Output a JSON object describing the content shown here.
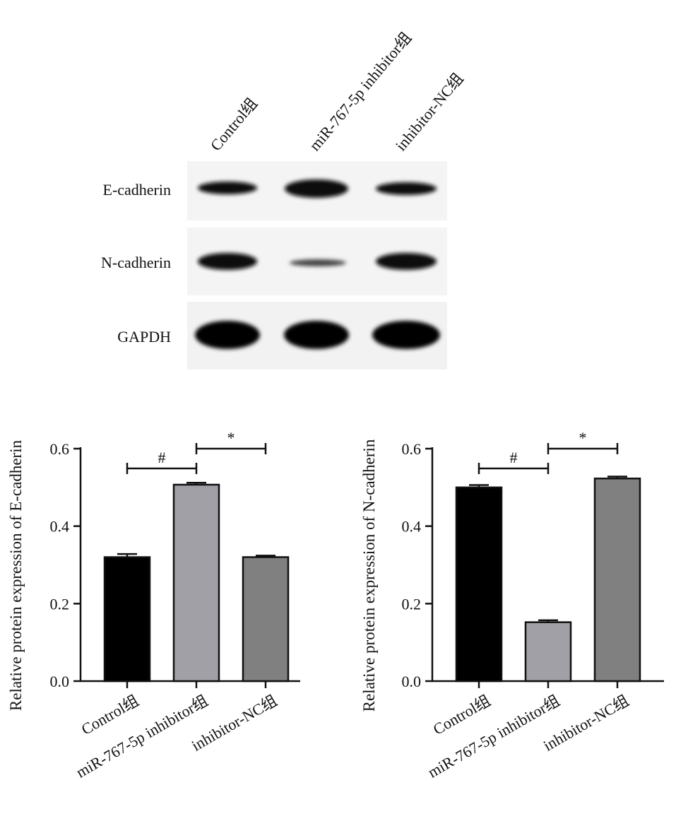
{
  "blot": {
    "lanes": [
      "Control组",
      "miR-767-5p inhibitor组",
      "inhibitor-NC组"
    ],
    "proteins": [
      "E-cadherin",
      "N-cadherin",
      "GAPDH"
    ]
  },
  "chart_data": [
    {
      "type": "bar",
      "y_label": "Relative protein expression of E-cadherin",
      "categories": [
        "Control组",
        "miR-767-5p inhibitor组",
        "inhibitor-NC组"
      ],
      "values": [
        0.32,
        0.507,
        0.32
      ],
      "errors": [
        0.008,
        0.005,
        0.004
      ],
      "colors": [
        "#000000",
        "#a0a0a6",
        "#808080"
      ],
      "ylim": [
        0,
        0.6
      ],
      "yticks": [
        {
          "value": 0,
          "label": "0.0"
        },
        0.2,
        0.4,
        0.6
      ],
      "annotations": [
        "#",
        "*"
      ]
    },
    {
      "type": "bar",
      "y_label": "Relative protein expression of N-cadherin",
      "categories": [
        "Control组",
        "miR-767-5p inhibitor组",
        "inhibitor-NC组"
      ],
      "values": [
        0.5,
        0.152,
        0.523
      ],
      "errors": [
        0.006,
        0.005,
        0.005
      ],
      "colors": [
        "#000000",
        "#a0a0a6",
        "#808080"
      ],
      "ylim": [
        0,
        0.6
      ],
      "yticks": [
        {
          "value": 0,
          "label": "0.0"
        },
        0.2,
        0.4,
        0.6
      ],
      "annotations": [
        "#",
        "*"
      ]
    }
  ]
}
